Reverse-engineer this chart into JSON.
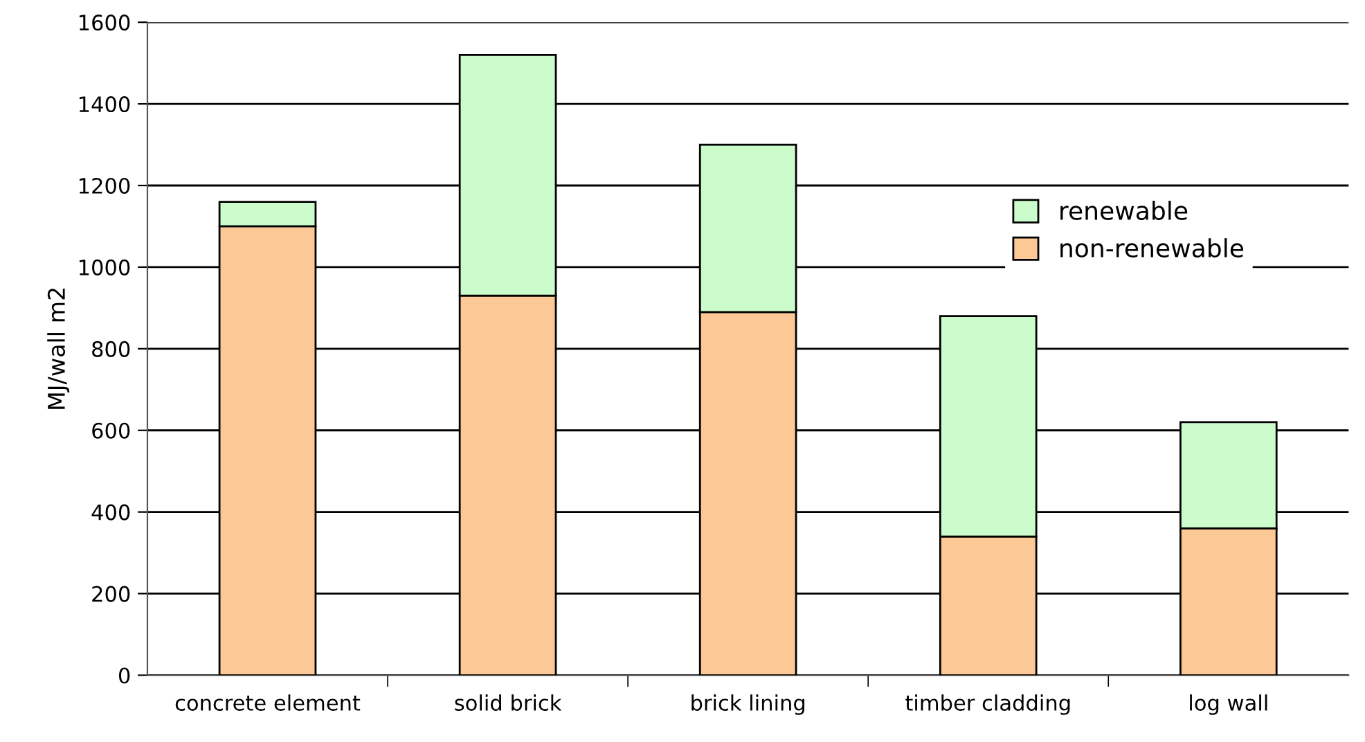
{
  "chart_data": {
    "type": "bar",
    "stacked": true,
    "ylabel": "MJ/wall m2",
    "categories": [
      "concrete element",
      "solid brick",
      "brick lining",
      "timber cladding",
      "log wall"
    ],
    "series": [
      {
        "name": "non-renewable",
        "color": "#fcc996",
        "values": [
          1100,
          930,
          890,
          340,
          360
        ]
      },
      {
        "name": "renewable",
        "color": "#ccfccc",
        "values": [
          60,
          590,
          410,
          540,
          260
        ]
      }
    ],
    "ylim": [
      0,
      1600
    ],
    "yticks": [
      0,
      200,
      400,
      600,
      800,
      1000,
      1200,
      1400,
      1600
    ],
    "grid": "y",
    "legend": "right"
  }
}
